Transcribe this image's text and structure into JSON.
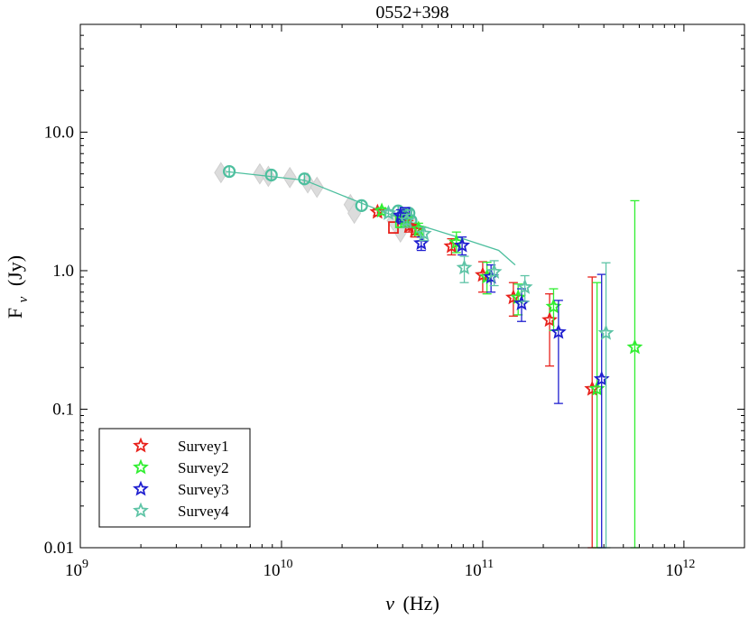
{
  "chart_data": {
    "type": "scatter",
    "title": "0552+398",
    "xlabel_symbol": "ν",
    "xlabel_unit": "(Hz)",
    "ylabel_symbol": "F",
    "ylabel_sub": "ν",
    "ylabel_unit": "(Jy)",
    "xscale": "log",
    "yscale": "log",
    "xlim": [
      1000000000.0,
      2000000000000.0
    ],
    "ylim": [
      0.01,
      60
    ],
    "x_ticks": [
      {
        "base": "10",
        "exp": "9",
        "value": 1000000000.0
      },
      {
        "base": "10",
        "exp": "10",
        "value": 10000000000.0
      },
      {
        "base": "10",
        "exp": "11",
        "value": 100000000000.0
      },
      {
        "base": "10",
        "exp": "12",
        "value": 1000000000000.0
      }
    ],
    "y_ticks": [
      {
        "label": "0.01",
        "value": 0.01
      },
      {
        "label": "0.1",
        "value": 0.1
      },
      {
        "label": "1.0",
        "value": 1.0
      },
      {
        "label": "10.0",
        "value": 10.0
      }
    ],
    "legend_position": "bottom-left",
    "model_curve": {
      "color": "#4dbf9e",
      "x": [
        5300000000.0,
        13000000000.0,
        26000000000.0,
        45000000000.0,
        80000000000.0,
        120000000000.0,
        145000000000.0
      ],
      "y": [
        5.2,
        4.5,
        3.0,
        2.2,
        1.7,
        1.4,
        1.1
      ]
    },
    "archival_points": [
      {
        "x": 5000000000.0,
        "y": 5.1
      },
      {
        "x": 7800000000.0,
        "y": 5.0
      },
      {
        "x": 8600000000.0,
        "y": 4.8
      },
      {
        "x": 11000000000.0,
        "y": 4.7
      },
      {
        "x": 13500000000.0,
        "y": 4.3
      },
      {
        "x": 15000000000.0,
        "y": 4.0
      },
      {
        "x": 22000000000.0,
        "y": 3.0
      },
      {
        "x": 23000000000.0,
        "y": 2.6
      },
      {
        "x": 36000000000.0,
        "y": 2.3
      },
      {
        "x": 39000000000.0,
        "y": 1.9
      },
      {
        "x": 45000000000.0,
        "y": 2.1
      }
    ],
    "circle_points": [
      {
        "x": 5500000000.0,
        "y": 5.2
      },
      {
        "x": 8900000000.0,
        "y": 4.9
      },
      {
        "x": 13000000000.0,
        "y": 4.6
      },
      {
        "x": 25000000000.0,
        "y": 2.95
      },
      {
        "x": 38000000000.0,
        "y": 2.7
      },
      {
        "x": 40000000000.0,
        "y": 2.5
      },
      {
        "x": 41000000000.0,
        "y": 2.4
      },
      {
        "x": 43000000000.0,
        "y": 2.6
      },
      {
        "x": 44000000000.0,
        "y": 2.3
      }
    ],
    "square_points": [
      {
        "x": 36000000000.0,
        "y": 2.05
      },
      {
        "x": 39000000000.0,
        "y": 2.25
      },
      {
        "x": 40000000000.0,
        "y": 2.4
      },
      {
        "x": 41000000000.0,
        "y": 2.6
      },
      {
        "x": 42000000000.0,
        "y": 2.5
      }
    ],
    "series": [
      {
        "name": "Survey1",
        "color": "#e8211b",
        "points": [
          {
            "x": 30000000000.0,
            "y": 2.65,
            "lo": 2.5,
            "hi": 2.8
          },
          {
            "x": 43000000000.0,
            "y": 2.1,
            "lo": 1.9,
            "hi": 2.3
          },
          {
            "x": 46000000000.0,
            "y": 1.95,
            "lo": 1.75,
            "hi": 2.15
          },
          {
            "x": 70000000000.0,
            "y": 1.5,
            "lo": 1.3,
            "hi": 1.7
          },
          {
            "x": 100000000000.0,
            "y": 0.93,
            "lo": 0.7,
            "hi": 1.16
          },
          {
            "x": 142000000000.0,
            "y": 0.64,
            "lo": 0.47,
            "hi": 0.82
          },
          {
            "x": 215000000000.0,
            "y": 0.44,
            "lo": 0.205,
            "hi": 0.68
          },
          {
            "x": 350000000000.0,
            "y": 0.14,
            "lo": 0.01,
            "hi": 0.9
          }
        ]
      },
      {
        "name": "Survey2",
        "color": "#30ee30",
        "points": [
          {
            "x": 31500000000.0,
            "y": 2.7,
            "lo": 2.55,
            "hi": 2.85
          },
          {
            "x": 41000000000.0,
            "y": 2.35,
            "lo": 2.1,
            "hi": 2.6
          },
          {
            "x": 48000000000.0,
            "y": 2.0,
            "lo": 1.8,
            "hi": 2.2
          },
          {
            "x": 74000000000.0,
            "y": 1.6,
            "lo": 1.35,
            "hi": 1.9
          },
          {
            "x": 105000000000.0,
            "y": 0.9,
            "lo": 0.68,
            "hi": 1.15
          },
          {
            "x": 150000000000.0,
            "y": 0.64,
            "lo": 0.48,
            "hi": 0.8
          },
          {
            "x": 225000000000.0,
            "y": 0.55,
            "lo": 0.37,
            "hi": 0.74
          },
          {
            "x": 370000000000.0,
            "y": 0.14,
            "lo": 0.01,
            "hi": 0.82
          },
          {
            "x": 570000000000.0,
            "y": 0.28,
            "lo": 0.01,
            "hi": 3.2
          }
        ]
      },
      {
        "name": "Survey3",
        "color": "#1f1fd0",
        "points": [
          {
            "x": 39000000000.0,
            "y": 2.5,
            "lo": 2.25,
            "hi": 2.75
          },
          {
            "x": 49500000000.0,
            "y": 1.58,
            "lo": 1.4,
            "hi": 1.75
          },
          {
            "x": 79000000000.0,
            "y": 1.52,
            "lo": 1.3,
            "hi": 1.75
          },
          {
            "x": 110000000000.0,
            "y": 0.9,
            "lo": 0.7,
            "hi": 1.1
          },
          {
            "x": 156000000000.0,
            "y": 0.58,
            "lo": 0.43,
            "hi": 0.74
          },
          {
            "x": 238000000000.0,
            "y": 0.36,
            "lo": 0.11,
            "hi": 0.61
          },
          {
            "x": 390000000000.0,
            "y": 0.165,
            "lo": 0.01,
            "hi": 0.94
          }
        ]
      },
      {
        "name": "Survey4",
        "color": "#5ec4a6",
        "points": [
          {
            "x": 34000000000.0,
            "y": 2.6,
            "lo": 2.45,
            "hi": 2.75
          },
          {
            "x": 42000000000.0,
            "y": 2.3,
            "lo": 2.05,
            "hi": 2.55
          },
          {
            "x": 51000000000.0,
            "y": 1.85,
            "lo": 1.65,
            "hi": 2.05
          },
          {
            "x": 81000000000.0,
            "y": 1.05,
            "lo": 0.82,
            "hi": 1.27
          },
          {
            "x": 114000000000.0,
            "y": 0.98,
            "lo": 0.78,
            "hi": 1.18
          },
          {
            "x": 162000000000.0,
            "y": 0.76,
            "lo": 0.6,
            "hi": 0.92
          },
          {
            "x": 410000000000.0,
            "y": 0.355,
            "lo": 0.01,
            "hi": 1.14
          }
        ]
      }
    ]
  }
}
